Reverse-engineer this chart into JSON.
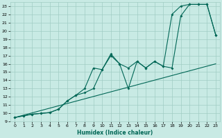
{
  "title": "",
  "xlabel": "Humidex (Indice chaleur)",
  "background_color": "#c8eae4",
  "grid_color": "#a0ccc4",
  "line_color": "#006655",
  "xlim": [
    -0.5,
    23.5
  ],
  "ylim": [
    9,
    23
  ],
  "line1_x": [
    0,
    1,
    2,
    3,
    4,
    5,
    6,
    7,
    8,
    9,
    10,
    11,
    12,
    13,
    14,
    15,
    16,
    17,
    18,
    19,
    20,
    21,
    22,
    23
  ],
  "line1_y": [
    9.5,
    9.7,
    9.9,
    10.0,
    10.1,
    10.5,
    11.5,
    12.2,
    12.5,
    13.0,
    15.3,
    17.2,
    16.0,
    15.5,
    16.3,
    15.5,
    16.3,
    15.7,
    15.5,
    21.8,
    23.2,
    23.2,
    23.2,
    19.5
  ],
  "line2_x": [
    0,
    1,
    2,
    3,
    4,
    5,
    6,
    7,
    8,
    9,
    10,
    11,
    12,
    13,
    14,
    15,
    16,
    17,
    18,
    19,
    20,
    21,
    22,
    23
  ],
  "line2_y": [
    9.5,
    9.7,
    9.9,
    10.0,
    10.1,
    10.5,
    11.5,
    12.2,
    13.0,
    15.5,
    15.3,
    17.0,
    16.0,
    13.0,
    16.3,
    15.5,
    16.3,
    15.7,
    22.0,
    23.0,
    23.2,
    23.2,
    23.2,
    19.5
  ],
  "line3_x": [
    0,
    23
  ],
  "line3_y": [
    9.5,
    16.0
  ]
}
